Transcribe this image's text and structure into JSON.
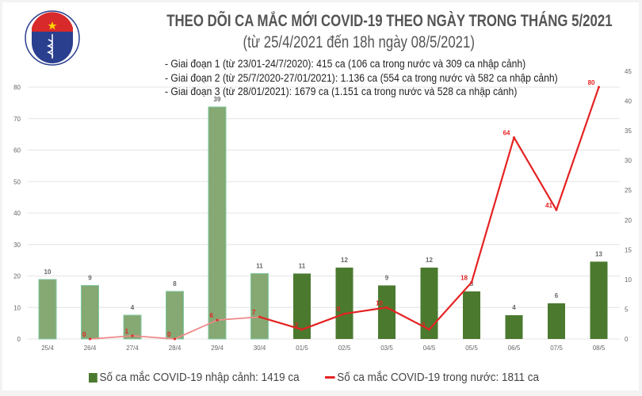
{
  "header": {
    "title": "THEO DÕI CA MẮC MỚI COVID-19 THEO NGÀY TRONG THÁNG 5/2021",
    "subtitle": "(từ 25/4/2021 đến 18h ngày 08/5/2021)",
    "logo_text": "BỘ Y TẾ · MINISTRY OF HEALTH",
    "notes": [
      "- Giai đoạn 1 (từ 23/01-24/7/2020): 415 ca (106 ca trong nước và 309 ca nhập cảnh)",
      "- Giai đoạn 2 (từ 25/7/2020-27/01/2021): 1.136 ca (554 ca trong nước và 582 ca nhập cảnh)",
      "- Giai đoạn 3 (từ 28/01/2021): 1679 ca (1.151 ca trong nước và 528 ca nhập cảnh)"
    ]
  },
  "chart_data": {
    "type": "bar+line",
    "categories": [
      "25/4",
      "26/4",
      "27/4",
      "28/4",
      "29/4",
      "30/4",
      "01/5",
      "02/5",
      "03/5",
      "04/5",
      "05/5",
      "06/5",
      "07/5",
      "08/5"
    ],
    "series": [
      {
        "name": "Số ca mắc COVID-19 nhập cảnh: 1419 ca",
        "type": "bar",
        "axis": "right",
        "values": [
          10,
          9,
          4,
          8,
          39,
          11,
          11,
          12,
          9,
          12,
          8,
          4,
          6,
          13
        ],
        "color": "#4b7a2f",
        "faded_color": "#86a873"
      },
      {
        "name": "Số ca mắc COVID-19 trong nước: 1811 ca",
        "type": "line",
        "axis": "left",
        "values": [
          null,
          0,
          1,
          0,
          6,
          7,
          3,
          8,
          10,
          3,
          18,
          64,
          41,
          80
        ],
        "color": "#e52222",
        "faded_color": "#f08a8a"
      }
    ],
    "faded_until_index": 5,
    "left_axis": {
      "range": [
        0,
        80
      ],
      "ticks": [
        0,
        10,
        20,
        30,
        40,
        50,
        60,
        70,
        80
      ]
    },
    "right_axis": {
      "range": [
        0,
        45
      ],
      "ticks": [
        0,
        5,
        10,
        15,
        20,
        25,
        30,
        35,
        40,
        45
      ]
    },
    "grid": true,
    "legend_position": "bottom"
  }
}
